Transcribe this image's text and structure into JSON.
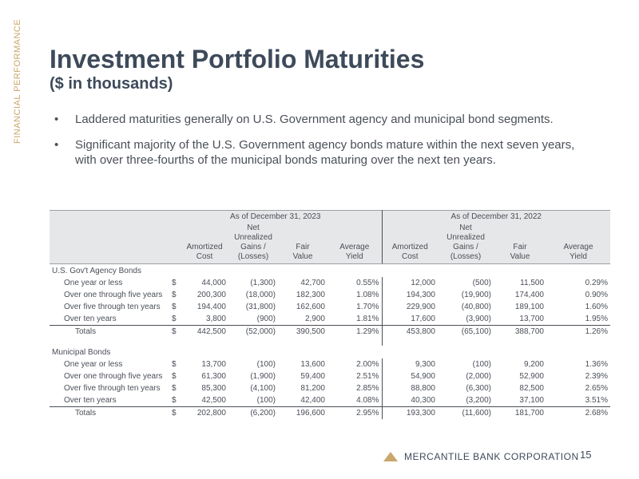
{
  "side_label": "FINANCIAL PERFORMANCE",
  "title": "Investment Portfolio Maturities",
  "subtitle": "($ in thousands)",
  "bullets": [
    "Laddered maturities generally on U.S. Government agency and municipal bond segments.",
    "Significant majority of the U.S. Government agency bonds mature within the next seven years, with over three-fourths of the municipal bonds maturing over the next ten years."
  ],
  "bullet_glyph": "•",
  "table": {
    "period_headers": [
      "As of December 31, 2023",
      "As of December 31, 2022"
    ],
    "col_headers": [
      [
        "Amortized",
        "Cost"
      ],
      [
        "Net",
        "Unrealized",
        "Gains /",
        "(Losses)"
      ],
      [
        "Fair",
        "Value"
      ],
      [
        "Average",
        "Yield"
      ]
    ],
    "dollar": "$",
    "sections": [
      {
        "title": "U.S. Gov't Agency Bonds",
        "rows": [
          {
            "label": "One year or less",
            "v": [
              "44,000",
              "(1,300)",
              "42,700",
              "0.55%",
              "12,000",
              "(500)",
              "11,500",
              "0.29%"
            ]
          },
          {
            "label": "Over one through five years",
            "v": [
              "200,300",
              "(18,000)",
              "182,300",
              "1.08%",
              "194,300",
              "(19,900)",
              "174,400",
              "0.90%"
            ]
          },
          {
            "label": "Over five through ten years",
            "v": [
              "194,400",
              "(31,800)",
              "162,600",
              "1.70%",
              "229,900",
              "(40,800)",
              "189,100",
              "1.60%"
            ]
          },
          {
            "label": "Over ten years",
            "v": [
              "3,800",
              "(900)",
              "2,900",
              "1.81%",
              "17,600",
              "(3,900)",
              "13,700",
              "1.95%"
            ]
          }
        ],
        "totals": {
          "label": "Totals",
          "v": [
            "442,500",
            "(52,000)",
            "390,500",
            "1.29%",
            "453,800",
            "(65,100)",
            "388,700",
            "1.26%"
          ]
        }
      },
      {
        "title": "Municipal Bonds",
        "rows": [
          {
            "label": "One year or less",
            "v": [
              "13,700",
              "(100)",
              "13,600",
              "2.00%",
              "9,300",
              "(100)",
              "9,200",
              "1.36%"
            ]
          },
          {
            "label": "Over one through five years",
            "v": [
              "61,300",
              "(1,900)",
              "59,400",
              "2.51%",
              "54,900",
              "(2,000)",
              "52,900",
              "2.39%"
            ]
          },
          {
            "label": "Over five through ten years",
            "v": [
              "85,300",
              "(4,100)",
              "81,200",
              "2.85%",
              "88,800",
              "(6,300)",
              "82,500",
              "2.65%"
            ]
          },
          {
            "label": "Over ten years",
            "v": [
              "42,500",
              "(100)",
              "42,400",
              "4.08%",
              "40,300",
              "(3,200)",
              "37,100",
              "3.51%"
            ]
          }
        ],
        "totals": {
          "label": "Totals",
          "v": [
            "202,800",
            "(6,200)",
            "196,600",
            "2.95%",
            "193,300",
            "(11,600)",
            "181,700",
            "2.68%"
          ]
        }
      }
    ]
  },
  "footer": {
    "company": "MERCANTILE BANK CORPORATION",
    "page": "15"
  },
  "colors": {
    "title": "#3d4a5a",
    "accent": "#c9a66b",
    "header_bg": "#e6e7e8"
  }
}
